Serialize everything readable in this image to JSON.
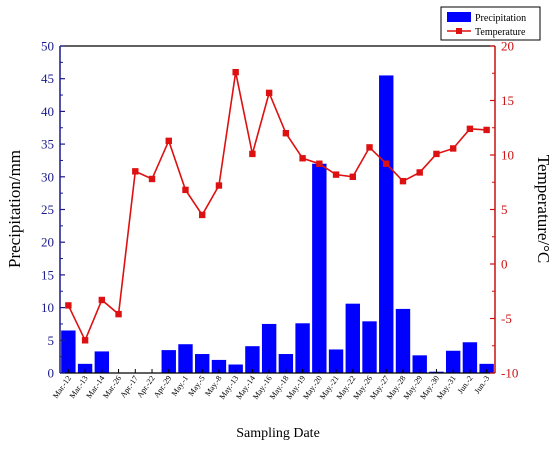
{
  "chart_data": {
    "type": "bar+line",
    "categories": [
      "Mar.-12",
      "Mar.-13",
      "Mar.-14",
      "Mar.-26",
      "Apr.-17",
      "Apr.-22",
      "Apr.-29",
      "May.-1",
      "May.-5",
      "May.-8",
      "May.-13",
      "May.-14",
      "May.-16",
      "May.-18",
      "May.-19",
      "May.-20",
      "May.-21",
      "May.-22",
      "May.-26",
      "May.-27",
      "May.-28",
      "May.-29",
      "May.-30",
      "May.-31",
      "Jun.-2",
      "Jun.-3"
    ],
    "series": [
      {
        "name": "Precipitation",
        "type": "bar",
        "axis": "left",
        "color": "#0000ff",
        "values": [
          6.5,
          1.4,
          3.3,
          0,
          0,
          0,
          3.5,
          4.4,
          2.9,
          2.0,
          1.3,
          4.1,
          7.5,
          2.9,
          7.6,
          32.0,
          3.6,
          10.6,
          7.9,
          45.5,
          9.8,
          2.7,
          0.2,
          3.4,
          4.7,
          1.4
        ]
      },
      {
        "name": "Temperature",
        "type": "line",
        "axis": "right",
        "color": "#dd1111",
        "values": [
          -3.8,
          -7.0,
          -3.3,
          -4.6,
          8.5,
          7.8,
          11.3,
          6.8,
          4.5,
          7.2,
          17.6,
          10.1,
          15.7,
          12.0,
          9.7,
          9.2,
          8.2,
          8.0,
          10.7,
          9.2,
          7.6,
          8.4,
          10.1,
          10.6,
          12.4,
          12.3
        ]
      }
    ],
    "xlabel": "Sampling Date",
    "ylabel": "Precipitation/mm",
    "ylabel_right": "Temperature/°C",
    "ylim": [
      0,
      50
    ],
    "ylim_right": [
      -10,
      20
    ],
    "yticks": [
      0,
      5,
      10,
      15,
      20,
      25,
      30,
      35,
      40,
      45,
      50
    ],
    "yticks_right": [
      -10,
      -5,
      0,
      5,
      10,
      15,
      20
    ],
    "legend_position": "top-right",
    "grid": false
  }
}
